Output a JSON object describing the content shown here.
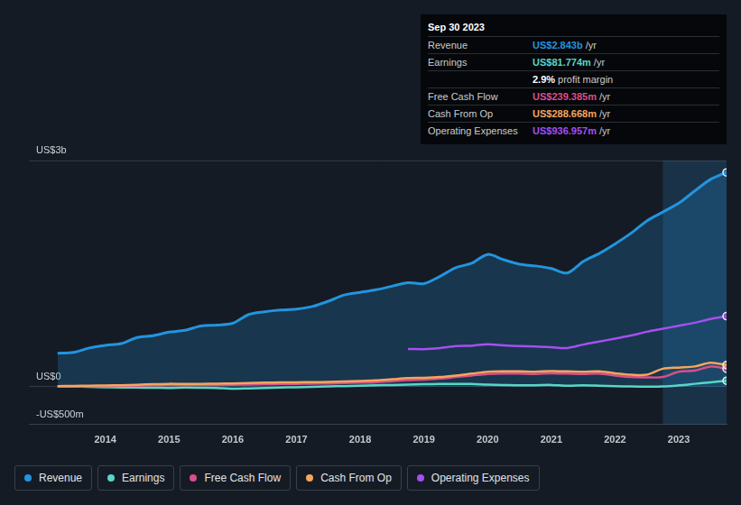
{
  "chart_data": {
    "type": "line",
    "x": [
      2013.25,
      2013.5,
      2013.75,
      2014,
      2014.25,
      2014.5,
      2014.75,
      2015,
      2015.25,
      2015.5,
      2015.75,
      2016,
      2016.25,
      2016.5,
      2016.75,
      2017,
      2017.25,
      2017.5,
      2017.75,
      2018,
      2018.25,
      2018.5,
      2018.75,
      2019,
      2019.25,
      2019.5,
      2019.75,
      2020,
      2020.25,
      2020.5,
      2020.75,
      2021,
      2021.25,
      2021.5,
      2021.75,
      2022,
      2022.25,
      2022.5,
      2022.75,
      2023,
      2023.25,
      2023.5,
      2023.75
    ],
    "xlim": [
      2012.8,
      2023.75
    ],
    "xticks": [
      2014,
      2015,
      2016,
      2017,
      2018,
      2019,
      2020,
      2021,
      2022,
      2023
    ],
    "ylim": [
      -500,
      3000
    ],
    "yticks": [
      {
        "value": 3000,
        "label": "US$3b"
      },
      {
        "value": 0,
        "label": "US$0"
      },
      {
        "value": -500,
        "label": "-US$500m"
      }
    ],
    "grid": true,
    "legend": "bottom",
    "series": [
      {
        "name": "Revenue",
        "color": "#2394df",
        "type": "area",
        "values": [
          445,
          456,
          515,
          550,
          573,
          655,
          679,
          725,
          749,
          807,
          819,
          842,
          959,
          995,
          1018,
          1030,
          1065,
          1135,
          1217,
          1252,
          1287,
          1334,
          1381,
          1369,
          1463,
          1580,
          1638,
          1755,
          1685,
          1626,
          1603,
          1568,
          1509,
          1661,
          1767,
          1895,
          2036,
          2200,
          2317,
          2434,
          2597,
          2750,
          2843
        ]
      },
      {
        "name": "Earnings",
        "color": "#58d6c6",
        "type": "line",
        "values": [
          5,
          3,
          0,
          -5,
          -8,
          -10,
          -12,
          -15,
          -10,
          -12,
          -15,
          -25,
          -20,
          -15,
          -10,
          -5,
          0,
          5,
          10,
          15,
          20,
          25,
          30,
          35,
          38,
          40,
          38,
          30,
          25,
          20,
          22,
          25,
          15,
          20,
          15,
          8,
          5,
          3,
          5,
          20,
          40,
          60,
          81.774
        ]
      },
      {
        "name": "Free Cash Flow",
        "color": "#d94f8a",
        "type": "line",
        "values": [
          5,
          6,
          8,
          10,
          12,
          15,
          20,
          25,
          22,
          24,
          25,
          28,
          30,
          35,
          38,
          40,
          42,
          45,
          50,
          55,
          60,
          75,
          90,
          95,
          110,
          130,
          150,
          170,
          175,
          175,
          170,
          180,
          175,
          170,
          175,
          150,
          130,
          125,
          130,
          200,
          215,
          270,
          239.385
        ]
      },
      {
        "name": "Cash From Op",
        "color": "#f5a55e",
        "type": "line",
        "values": [
          10,
          12,
          15,
          18,
          22,
          28,
          35,
          40,
          38,
          40,
          42,
          45,
          50,
          55,
          58,
          60,
          62,
          65,
          70,
          78,
          85,
          100,
          115,
          120,
          130,
          150,
          175,
          200,
          205,
          205,
          200,
          210,
          205,
          200,
          205,
          180,
          160,
          160,
          240,
          255,
          270,
          320,
          288.668
        ]
      },
      {
        "name": "Operating Expenses",
        "color": "#a64ff0",
        "type": "line",
        "values": [
          null,
          null,
          null,
          null,
          null,
          null,
          null,
          null,
          null,
          null,
          null,
          null,
          null,
          null,
          null,
          null,
          null,
          null,
          null,
          null,
          null,
          null,
          503,
          500,
          515,
          540,
          545,
          565,
          550,
          540,
          535,
          525,
          515,
          560,
          600,
          640,
          680,
          730,
          770,
          810,
          850,
          900,
          936.957
        ]
      }
    ],
    "info_box": {
      "title": "Sep 30 2023",
      "rows": [
        {
          "label": "Revenue",
          "value": "US$2.843b",
          "unit": "/yr",
          "series": "Revenue"
        },
        {
          "label": "Earnings",
          "value": "US$81.774m",
          "unit": "/yr",
          "series": "Earnings"
        },
        {
          "label": "",
          "value": "2.9%",
          "unit": "profit margin"
        },
        {
          "label": "Free Cash Flow",
          "value": "US$239.385m",
          "unit": "/yr",
          "series": "Free Cash Flow"
        },
        {
          "label": "Cash From Op",
          "value": "US$288.668m",
          "unit": "/yr",
          "series": "Cash From Op"
        },
        {
          "label": "Operating Expenses",
          "value": "US$936.957m",
          "unit": "/yr",
          "series": "Operating Expenses"
        }
      ]
    }
  }
}
